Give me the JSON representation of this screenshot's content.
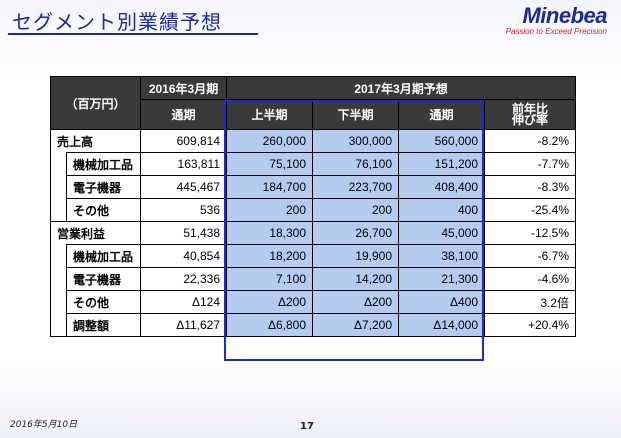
{
  "title": "セグメント別業績予想",
  "logo": {
    "name": "Minebea",
    "tagline": "Passion to Exceed Precision"
  },
  "table": {
    "unit_label": "（百万円）",
    "period_2016": "2016年3月期",
    "period_2017": "2017年3月期予想",
    "col_full_year_2016": "通期",
    "col_first_half": "上半期",
    "col_second_half": "下半期",
    "col_full_year_2017": "通期",
    "col_yoy": "前年比\n伸び率",
    "rows": [
      {
        "label": "売上高",
        "v2016": "609,814",
        "h1": "260,000",
        "h2": "300,000",
        "fy": "560,000",
        "yoy": "-8.2%"
      },
      {
        "label": "機械加工品",
        "v2016": "163,811",
        "h1": "75,100",
        "h2": "76,100",
        "fy": "151,200",
        "yoy": "-7.7%"
      },
      {
        "label": "電子機器",
        "v2016": "445,467",
        "h1": "184,700",
        "h2": "223,700",
        "fy": "408,400",
        "yoy": "-8.3%"
      },
      {
        "label": "その他",
        "v2016": "536",
        "h1": "200",
        "h2": "200",
        "fy": "400",
        "yoy": "-25.4%"
      },
      {
        "label": "営業利益",
        "v2016": "51,438",
        "h1": "18,300",
        "h2": "26,700",
        "fy": "45,000",
        "yoy": "-12.5%"
      },
      {
        "label": "機械加工品",
        "v2016": "40,854",
        "h1": "18,200",
        "h2": "19,900",
        "fy": "38,100",
        "yoy": "-6.7%"
      },
      {
        "label": "電子機器",
        "v2016": "22,336",
        "h1": "7,100",
        "h2": "14,200",
        "fy": "21,300",
        "yoy": "-4.6%"
      },
      {
        "label": "その他",
        "v2016": "Δ124",
        "h1": "Δ200",
        "h2": "Δ200",
        "fy": "Δ400",
        "yoy": "3.2倍"
      },
      {
        "label": "調整額",
        "v2016": "Δ11,627",
        "h1": "Δ6,800",
        "h2": "Δ7,200",
        "fy": "Δ14,000",
        "yoy": "+20.4%"
      }
    ]
  },
  "footer": {
    "date": "2016年5月10日",
    "page": "17"
  },
  "colors": {
    "title": "#1b2a9a",
    "header_bg": "#3a3a3a",
    "forecast_bg": "#b4cbf0",
    "frame": "#1c2bd0",
    "tagline": "#d0202a"
  }
}
